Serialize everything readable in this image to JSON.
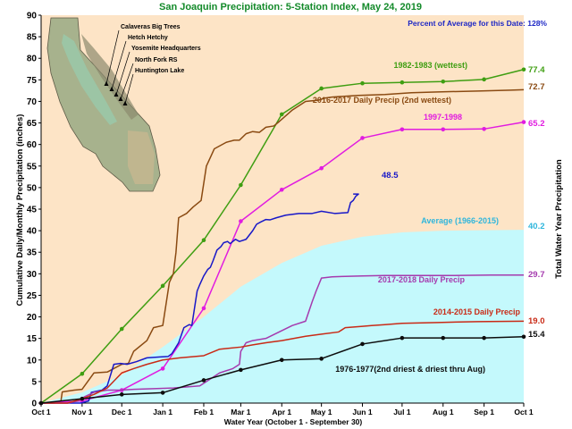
{
  "chart_data": {
    "type": "line",
    "title": "San Joaquin Precipitation: 5-Station Index, May 24, 2019",
    "subtitle": "Percent of Average for this Date: 128%",
    "xlabel": "Water Year (October 1 - September 30)",
    "ylabel": "Cumulative Daily/Monthly Precipitation (inches)",
    "ylabel_right": "Total Water Year Precipitation",
    "xlim": [
      0,
      365
    ],
    "ylim": [
      0,
      90
    ],
    "yticks": [
      0,
      5,
      10,
      15,
      20,
      25,
      30,
      35,
      40,
      45,
      50,
      55,
      60,
      65,
      70,
      75,
      80,
      85,
      90
    ],
    "xticks": [
      {
        "d": 0,
        "label": "Oct 1"
      },
      {
        "d": 31,
        "label": "Nov 1"
      },
      {
        "d": 61,
        "label": "Dec 1"
      },
      {
        "d": 92,
        "label": "Jan 1"
      },
      {
        "d": 123,
        "label": "Feb 1"
      },
      {
        "d": 151,
        "label": "Mar 1"
      },
      {
        "d": 182,
        "label": "Apr 1"
      },
      {
        "d": 212,
        "label": "May 1"
      },
      {
        "d": 243,
        "label": "Jun 1"
      },
      {
        "d": 273,
        "label": "Jul 1"
      },
      {
        "d": 304,
        "label": "Aug 1"
      },
      {
        "d": 335,
        "label": "Sep 1"
      },
      {
        "d": 365,
        "label": "Oct 1"
      }
    ],
    "grid": false,
    "colors": {
      "background": "#fde4c6",
      "average_fill": "#c4f9fc"
    },
    "stations": [
      "Calaveras Big Trees",
      "Hetch Hetchy",
      "Yosemite Headquarters",
      "North Fork RS",
      "Huntington Lake"
    ],
    "average": {
      "name": "Average (1966-2015)",
      "total": "40.2",
      "color": "#2fb6dc",
      "x": [
        0,
        31,
        61,
        92,
        123,
        151,
        182,
        212,
        243,
        273,
        304,
        335,
        365
      ],
      "y": [
        0,
        2.5,
        6.5,
        13,
        20,
        27,
        32.5,
        36.5,
        38.6,
        39.6,
        40.0,
        40.1,
        40.2
      ]
    },
    "series": [
      {
        "name": "1982-1983 (wettest)",
        "total": "77.4",
        "color": "#3f9e12",
        "markers": true,
        "x": [
          0,
          31,
          61,
          92,
          123,
          151,
          182,
          212,
          243,
          273,
          304,
          335,
          365
        ],
        "y": [
          0,
          6.8,
          17.2,
          27.2,
          37.8,
          50.6,
          67.0,
          73.0,
          74.2,
          74.4,
          74.6,
          75.1,
          77.4
        ]
      },
      {
        "name": "2016-2017 Daily Precip (2nd wettest)",
        "total": "72.7",
        "color": "#8a4a12",
        "markers": false,
        "x": [
          0,
          10,
          15,
          16,
          25,
          31,
          40,
          50,
          61,
          66,
          70,
          80,
          85,
          92,
          95,
          97,
          100,
          102,
          104,
          110,
          115,
          121,
          125,
          128,
          131,
          140,
          146,
          150,
          155,
          160,
          165,
          170,
          176,
          180,
          190,
          200,
          210,
          215,
          220,
          240,
          260,
          280,
          300,
          330,
          355,
          365
        ],
        "y": [
          0,
          0,
          0.5,
          2.6,
          3.0,
          3.2,
          7.0,
          7.2,
          9.0,
          9.2,
          12.0,
          14.5,
          17.5,
          18.0,
          24.0,
          28.0,
          30.0,
          35.0,
          43.0,
          44.0,
          45.5,
          47.0,
          55.0,
          57.0,
          59.0,
          60.5,
          61.0,
          61.0,
          62.5,
          63.0,
          62.8,
          64.0,
          64.3,
          65.3,
          68.0,
          70.0,
          70.3,
          70.8,
          71.0,
          71.4,
          71.6,
          72.0,
          72.2,
          72.4,
          72.6,
          72.7
        ]
      },
      {
        "name": "1997-1998",
        "total": "65.2",
        "color": "#e11ce0",
        "markers": true,
        "x": [
          0,
          31,
          61,
          92,
          123,
          151,
          182,
          212,
          243,
          273,
          304,
          335,
          365
        ],
        "y": [
          0,
          0.5,
          3.0,
          8.0,
          22.0,
          42.2,
          49.5,
          54.5,
          61.5,
          63.5,
          63.5,
          63.6,
          65.2
        ]
      },
      {
        "name": "2018-2019",
        "total": "48.5",
        "color": "#1818c8",
        "markers": false,
        "x": [
          0,
          30,
          36,
          38,
          46,
          50,
          55,
          60,
          65,
          72,
          80,
          90,
          96,
          99,
          104,
          108,
          112,
          114,
          118,
          120,
          123,
          126,
          128,
          130,
          133,
          136,
          138,
          141,
          143,
          147,
          150,
          155,
          160,
          163,
          166,
          170,
          173,
          178,
          185,
          195,
          205,
          212,
          222,
          232,
          234,
          236,
          238,
          240,
          236
        ],
        "y": [
          0,
          0,
          0.5,
          2.5,
          3.0,
          4.0,
          9.0,
          9.2,
          9.0,
          9.6,
          10.5,
          10.7,
          10.8,
          11.5,
          14.0,
          17.5,
          18.2,
          18.0,
          26.0,
          27.5,
          29.5,
          31.0,
          31.5,
          33.0,
          35.5,
          36.3,
          37.2,
          37.5,
          37.0,
          38.0,
          37.5,
          38.0,
          40.0,
          41.5,
          42.0,
          42.6,
          42.5,
          43.0,
          43.6,
          44.0,
          44.0,
          44.5,
          44.0,
          44.2,
          46.5,
          47.0,
          48.0,
          48.5,
          48.5
        ]
      },
      {
        "name": "2017-2018 Daily Precip",
        "total": "29.7",
        "color": "#a53aae",
        "markers": false,
        "x": [
          0,
          20,
          28,
          33,
          40,
          50,
          60,
          70,
          80,
          90,
          100,
          120,
          135,
          145,
          150,
          151,
          155,
          160,
          170,
          180,
          190,
          200,
          205,
          208,
          212,
          220,
          230,
          243,
          260,
          280,
          310,
          340,
          365
        ],
        "y": [
          0,
          0,
          0.5,
          1.5,
          2.5,
          3.0,
          3.0,
          3.2,
          3.3,
          3.4,
          3.5,
          4.0,
          7.0,
          8.0,
          9.0,
          12.0,
          14.0,
          14.5,
          15.0,
          16.5,
          18.0,
          19.0,
          23.5,
          26.0,
          29.0,
          29.3,
          29.4,
          29.5,
          29.6,
          29.6,
          29.6,
          29.7,
          29.7
        ]
      },
      {
        "name": "2014-2015 Daily Precip",
        "total": "19.0",
        "color": "#c92a16",
        "markers": false,
        "x": [
          0,
          20,
          31,
          40,
          50,
          61,
          70,
          80,
          92,
          105,
          123,
          135,
          151,
          160,
          170,
          182,
          200,
          212,
          225,
          230,
          243,
          250,
          260,
          273,
          300,
          330,
          365
        ],
        "y": [
          0,
          0,
          1.0,
          2.0,
          3.5,
          7.0,
          8.0,
          9.0,
          10.0,
          10.5,
          11.0,
          12.5,
          13.0,
          13.5,
          14.0,
          14.5,
          15.5,
          16.0,
          16.5,
          17.5,
          17.8,
          18.0,
          18.2,
          18.5,
          18.7,
          18.9,
          19.0
        ]
      },
      {
        "name": "1976-1977(2nd driest & driest thru Aug)",
        "total": "15.4",
        "color": "#0d0d0d",
        "markers": true,
        "x": [
          0,
          31,
          61,
          92,
          123,
          151,
          182,
          212,
          243,
          273,
          304,
          335,
          365
        ],
        "y": [
          0,
          1.0,
          2.0,
          2.4,
          5.3,
          7.7,
          10.0,
          10.3,
          13.7,
          15.1,
          15.1,
          15.1,
          15.4
        ]
      }
    ]
  }
}
